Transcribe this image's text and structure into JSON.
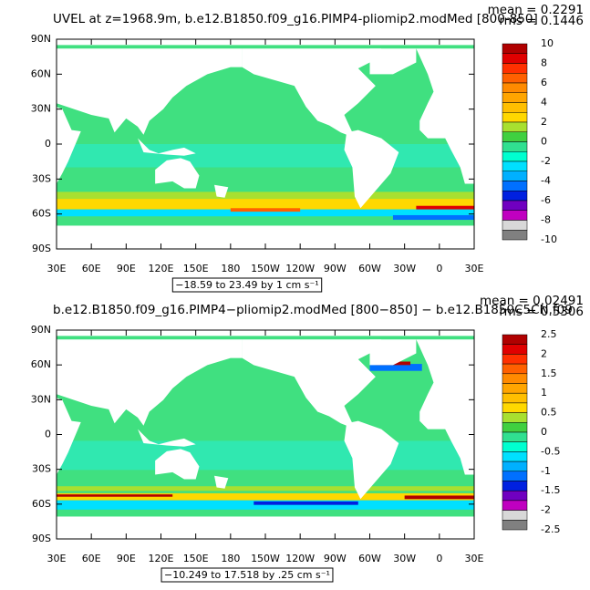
{
  "chart_data": [
    {
      "type": "contour_map",
      "title": "UVEL at z=1968.9m, b.e12.B1850.f09_g16.PIMP4-pliomip2.modMed [800-850]",
      "mean": "mean = 0.2291",
      "rms": "rms = 0.1446",
      "xlim": [
        30,
        390
      ],
      "ylim": [
        -90,
        90
      ],
      "xticks": [
        {
          "value": 30,
          "label": "30E"
        },
        {
          "value": 60,
          "label": "60E"
        },
        {
          "value": 90,
          "label": "90E"
        },
        {
          "value": 120,
          "label": "120E"
        },
        {
          "value": 150,
          "label": "150E"
        },
        {
          "value": 180,
          "label": "180"
        },
        {
          "value": 210,
          "label": "150W"
        },
        {
          "value": 240,
          "label": "120W"
        },
        {
          "value": 270,
          "label": "90W"
        },
        {
          "value": 300,
          "label": "60W"
        },
        {
          "value": 330,
          "label": "30W"
        },
        {
          "value": 360,
          "label": "0"
        },
        {
          "value": 390,
          "label": "30E"
        }
      ],
      "yticks": [
        {
          "value": 90,
          "label": "90N"
        },
        {
          "value": 60,
          "label": "60N"
        },
        {
          "value": 30,
          "label": "30N"
        },
        0,
        {
          "value": -30,
          "label": "30S"
        },
        {
          "value": -60,
          "label": "60S"
        },
        {
          "value": -90,
          "label": "90S"
        }
      ],
      "colorbar": {
        "labels": [
          10,
          8,
          6,
          4,
          2,
          0,
          -2,
          -4,
          -6,
          -8,
          -10
        ],
        "colors": [
          "#b00000",
          "#e00000",
          "#ff3000",
          "#ff6000",
          "#ff8a00",
          "#ffa500",
          "#ffbf00",
          "#ffd800",
          "#a8e030",
          "#40d040",
          "#30e090",
          "#00ffd0",
          "#00e0ff",
          "#00b0ff",
          "#0070ff",
          "#0020e0",
          "#7000c0",
          "#c000c0",
          "#d8d8d8",
          "#808080"
        ]
      },
      "info_label": "−18.59 to 23.49 by 1 cm s⁻¹"
    },
    {
      "type": "contour_map",
      "title": "b.e12.B1850.f09_g16.PIMP4−pliomip2.modMed [800−850] − b.e12.B1850C5CN.f09",
      "mean": "mean = 0.02491",
      "rms": "rms = 0.5306",
      "xlim": [
        30,
        390
      ],
      "ylim": [
        -90,
        90
      ],
      "xticks": [
        {
          "value": 30,
          "label": "30E"
        },
        {
          "value": 60,
          "label": "60E"
        },
        {
          "value": 90,
          "label": "90E"
        },
        {
          "value": 120,
          "label": "120E"
        },
        {
          "value": 150,
          "label": "150E"
        },
        {
          "value": 180,
          "label": "180"
        },
        {
          "value": 210,
          "label": "150W"
        },
        {
          "value": 240,
          "label": "120W"
        },
        {
          "value": 270,
          "label": "90W"
        },
        {
          "value": 300,
          "label": "60W"
        },
        {
          "value": 330,
          "label": "30W"
        },
        {
          "value": 360,
          "label": "0"
        },
        {
          "value": 390,
          "label": "30E"
        }
      ],
      "yticks": [
        {
          "value": 90,
          "label": "90N"
        },
        {
          "value": 60,
          "label": "60N"
        },
        {
          "value": 30,
          "label": "30N"
        },
        0,
        {
          "value": -30,
          "label": "30S"
        },
        {
          "value": -60,
          "label": "60S"
        },
        {
          "value": -90,
          "label": "90S"
        }
      ],
      "colorbar": {
        "labels": [
          2.5,
          2,
          1.5,
          1,
          0.5,
          0,
          -0.5,
          -1,
          -1.5,
          -2,
          -2.5
        ],
        "colors": [
          "#b00000",
          "#e00000",
          "#ff3000",
          "#ff6000",
          "#ff8a00",
          "#ffa500",
          "#ffbf00",
          "#ffd800",
          "#a8e030",
          "#40d040",
          "#30e090",
          "#00ffd0",
          "#00e0ff",
          "#00b0ff",
          "#0070ff",
          "#0020e0",
          "#7000c0",
          "#c000c0",
          "#d8d8d8",
          "#808080"
        ]
      },
      "info_label": "−10.249 to 17.518 by .25 cm s⁻¹"
    }
  ]
}
